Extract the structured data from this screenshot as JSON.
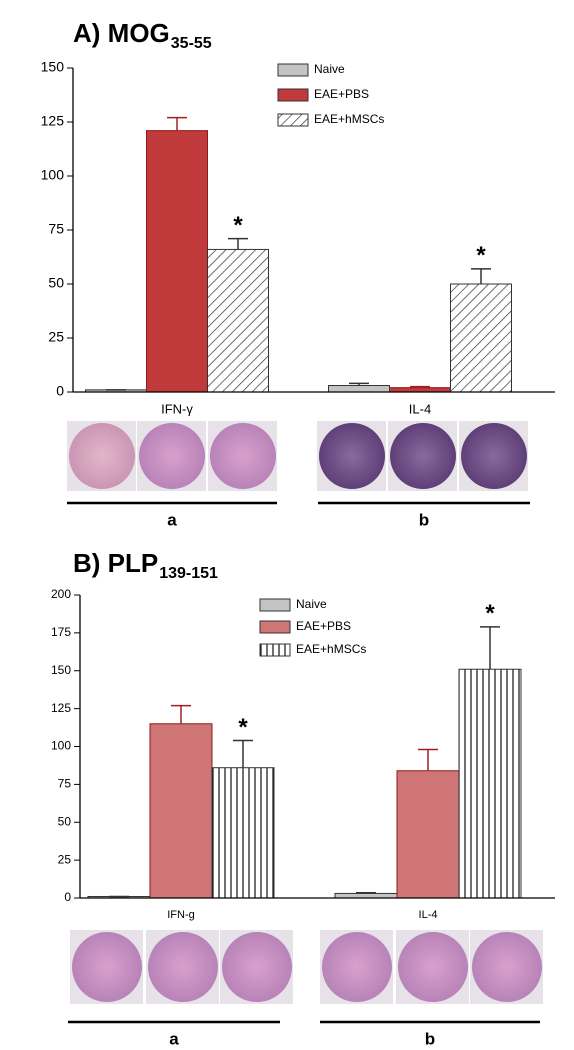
{
  "chart_data": [
    {
      "type": "bar",
      "title": "A)  MOG",
      "title_subscript": "35-55",
      "categories": [
        "IFN-γ",
        "IL-4"
      ],
      "series": [
        {
          "name": "Naive",
          "color": "#c4c4c4",
          "values": [
            1,
            3
          ],
          "errors": [
            0,
            1
          ]
        },
        {
          "name": "EAE+PBS",
          "color": "#c0393b",
          "values": [
            121,
            2
          ],
          "errors": [
            6,
            0.5
          ]
        },
        {
          "name": "EAE+hMSCs",
          "color": "#ffffff",
          "hatch": "diagonal",
          "values": [
            66,
            50
          ],
          "errors": [
            5,
            7
          ],
          "significance": [
            "*",
            "*"
          ]
        }
      ],
      "ylim": [
        0,
        150
      ],
      "yticks": [
        0,
        25,
        50,
        75,
        100,
        125,
        150
      ],
      "panel_labels": [
        "a",
        "b"
      ]
    },
    {
      "type": "bar",
      "title": "B)  PLP",
      "title_subscript": "139-151",
      "categories": [
        "IFN-g",
        "IL-4"
      ],
      "series": [
        {
          "name": "Naive",
          "color": "#c4c4c4",
          "values": [
            1,
            3
          ],
          "errors": [
            0,
            0.5
          ]
        },
        {
          "name": "EAE+PBS",
          "color": "#d07575",
          "values": [
            115,
            84
          ],
          "errors": [
            12,
            14
          ]
        },
        {
          "name": "EAE+hMSCs",
          "color": "#ffffff",
          "hatch": "vertical",
          "values": [
            86,
            151
          ],
          "errors": [
            18,
            28
          ],
          "significance": [
            "*",
            "*"
          ]
        }
      ],
      "ylim": [
        0,
        200
      ],
      "yticks": [
        0,
        25,
        50,
        75,
        100,
        125,
        150,
        175,
        200
      ],
      "panel_labels": [
        "a",
        "b"
      ]
    }
  ]
}
